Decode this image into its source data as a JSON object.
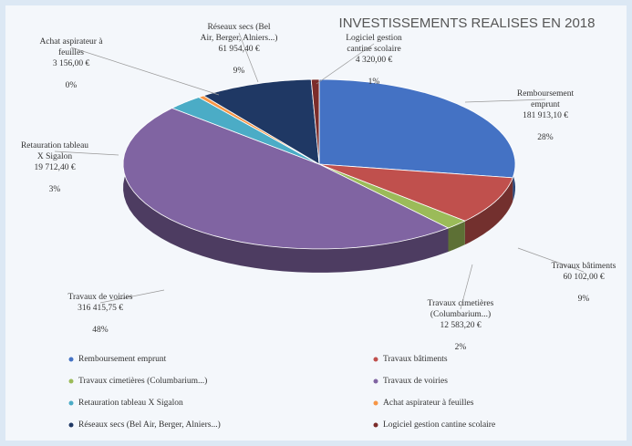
{
  "chart_data": {
    "type": "pie",
    "title": "INVESTISSEMENTS REALISES EN 2018",
    "categories": [
      "Remboursement emprunt",
      "Travaux bâtiments",
      "Travaux cimetières (Columbarium...)",
      "Travaux de voiries",
      "Retauration tableau X Sigalon",
      "Achat aspirateur à feuilles",
      "Réseaux secs (Bel Air, Berger, Alniers...)",
      "Logiciel gestion cantine scolaire"
    ],
    "label_lines": [
      [
        "Remboursement",
        "emprunt"
      ],
      [
        "Travaux bâtiments"
      ],
      [
        "Travaux cimetières",
        "(Columbarium...)"
      ],
      [
        "Travaux de voiries"
      ],
      [
        "Retauration tableau",
        "X Sigalon"
      ],
      [
        "Achat aspirateur à",
        "feuilles"
      ],
      [
        "Réseaux secs (Bel",
        "Air, Berger, Alniers...)"
      ],
      [
        "Logiciel gestion",
        "cantine scolaire"
      ]
    ],
    "values": [
      181913.1,
      60102.0,
      12583.2,
      316415.75,
      19712.4,
      3156.0,
      61954.4,
      4320.0
    ],
    "value_labels": [
      "181 913,10 €",
      "60 102,00 €",
      "12 583,20 €",
      "316 415,75 €",
      "19 712,40 €",
      "3 156,00 €",
      "61 954,40 €",
      "4 320,00 €"
    ],
    "percent_labels": [
      "28%",
      "9%",
      "2%",
      "48%",
      "3%",
      "0%",
      "9%",
      "1%"
    ],
    "colors": [
      "#4472c4",
      "#c0504d",
      "#9bbb59",
      "#8064a2",
      "#4bacc6",
      "#f79646",
      "#1f3864",
      "#7b2c2a"
    ],
    "legend": "bottom"
  }
}
